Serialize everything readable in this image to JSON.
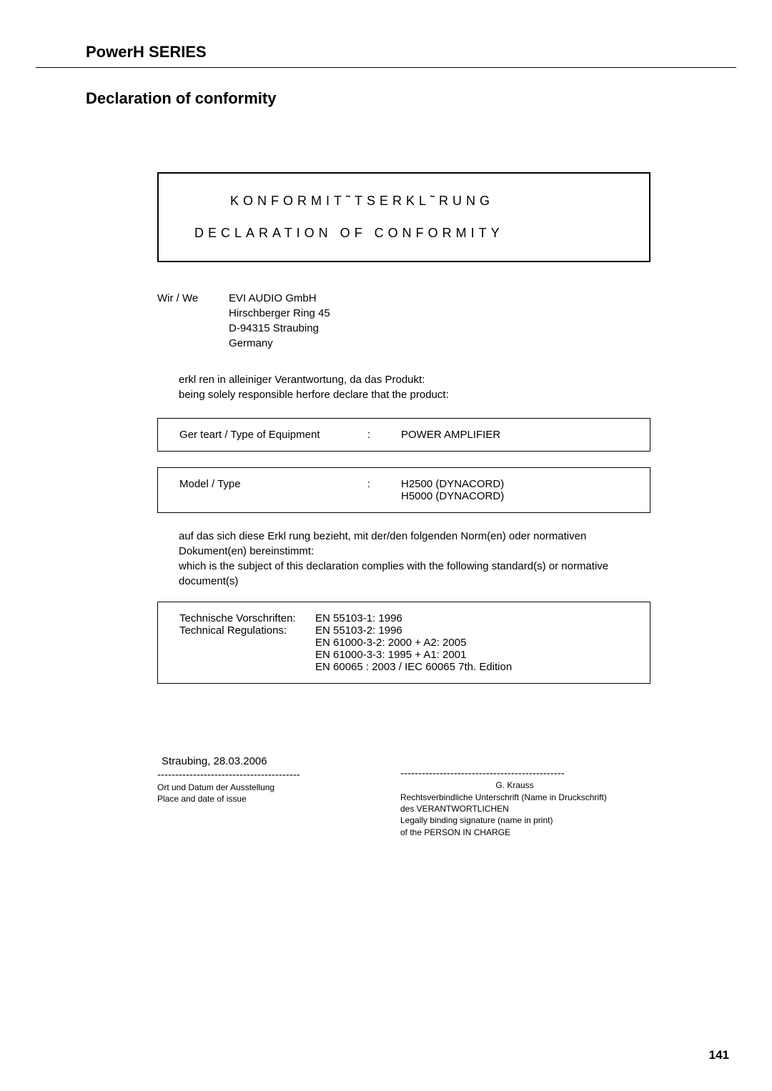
{
  "series_title": "PowerH SERIES",
  "section_title": "Declaration of conformity",
  "title_box": {
    "line1": "KONFORMIT˜TSERKL˜RUNG",
    "line2": "DECLARATION OF CONFORMITY"
  },
  "company": {
    "label": "Wir / We",
    "name": "EVI  AUDIO GmbH",
    "addr1": "Hirschberger Ring 45",
    "addr2": "D-94315 Straubing",
    "addr3": "Germany"
  },
  "declare": {
    "de": "erkl ren in alleiniger Verantwortung, da  das Produkt:",
    "en": "being solely responsible herfore declare that the product:"
  },
  "equip": {
    "label": "Ger teart / Type of Equipment",
    "colon": ":",
    "value": "POWER  AMPLIFIER"
  },
  "model": {
    "label": "Model / Type",
    "colon": ":",
    "value1": "H2500 (DYNACORD)",
    "value2": "H5000 (DYNACORD)"
  },
  "subject": {
    "de": "auf das sich diese Erkl rung bezieht, mit der/den folgenden Norm(en) oder normativen Dokument(en)  bereinstimmt:",
    "en": "which is the subject of this declaration complies with the following standard(s) or normative document(s)"
  },
  "tech": {
    "label_de": "Technische Vorschriften:",
    "label_en": "Technical Regulations:",
    "r1": "EN 55103-1: 1996",
    "r2": "EN 55103-2: 1996",
    "r3": "EN 61000-3-2: 2000 + A2: 2005",
    "r4": "EN 61000-3-3: 1995 + A1: 2001",
    "r5": "EN 60065 : 2003 / IEC 60065 7th. Edition"
  },
  "sign": {
    "place_date": "Straubing,  28.03.2006",
    "dashes1": "----------------------------------------",
    "dashes2": "----------------------------------------------",
    "place_label_de": "Ort  und  Datum  der  Ausstellung",
    "place_label_en": "Place and date of issue",
    "name": "G. Krauss",
    "sig_de_1": "Rechtsverbindliche  Unterschrift   (Name in Druckschrift)",
    "sig_de_2": "des  VERANTWORTLICHEN",
    "sig_en_1": "Legally binding signature             (name in print)",
    "sig_en_2": "of the PERSON IN CHARGE"
  },
  "page_number": "141"
}
